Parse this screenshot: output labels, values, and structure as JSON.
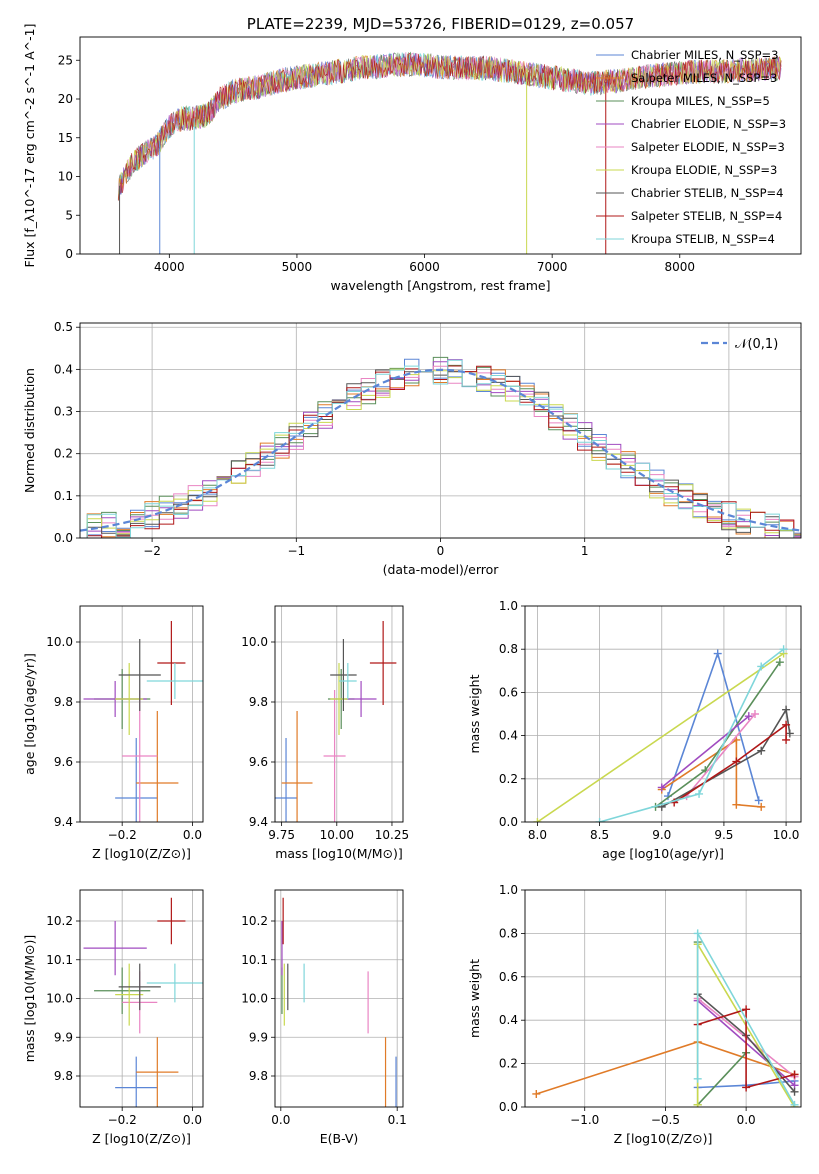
{
  "labels": [
    "Chabrier MILES",
    "Salpeter MILES",
    "Kroupa MILES",
    "Chabrier ELODIE",
    "Salpeter ELODIE",
    "Kroupa ELODIE",
    "Chabrier STELIB",
    "Salpeter STELIB",
    "Kroupa STELIB"
  ],
  "nssp": [
    "N_SSP=3",
    "N_SSP=3",
    "N_SSP=5",
    "N_SSP=3",
    "N_SSP=3",
    "N_SSP=3",
    "N_SSP=4",
    "N_SSP=4",
    "N_SSP=4"
  ],
  "colors": [
    "#5b86d6",
    "#e07b28",
    "#5a8f5a",
    "#a04bc0",
    "#e985c3",
    "#c9d84f",
    "#555555",
    "#b01818",
    "#7fd6da"
  ],
  "chart_data": [
    {
      "id": "spectrum",
      "type": "line",
      "title": "PLATE=2239, MJD=53726, FIBERID=0129, z=0.057",
      "xlabel": "wavelength [Angstrom, rest frame]",
      "ylabel": "Flux [f_λ10^-17 erg cm^-2 s^-1 A^-1]",
      "xlim": [
        3300,
        8950
      ],
      "ylim": [
        0,
        28
      ],
      "xticks": [
        "4000",
        "5000",
        "6000",
        "7000",
        "8000"
      ],
      "yticks": [
        "0",
        "5",
        "10",
        "15",
        "20",
        "25"
      ],
      "x": [
        3600,
        3700,
        3800,
        3900,
        4000,
        4100,
        4200,
        4300,
        4400,
        4500,
        4700,
        4900,
        5100,
        5300,
        5500,
        5700,
        5900,
        6100,
        6300,
        6500,
        6700,
        6900,
        7100,
        7300,
        7500,
        7700,
        7900,
        8100,
        8300,
        8500,
        8800
      ],
      "y": [
        8.5,
        11.5,
        13,
        14,
        16.5,
        17.5,
        17.5,
        18,
        20,
        21,
        21.5,
        22.5,
        23,
        23.5,
        24,
        24.3,
        24.5,
        24.2,
        24,
        24,
        23.5,
        23,
        22.5,
        22,
        22.3,
        22.8,
        23.2,
        23.5,
        23.5,
        23.8,
        24
      ],
      "grid": false,
      "legend": "top-right"
    },
    {
      "id": "residuals",
      "type": "bar",
      "xlabel": "(data-model)/error",
      "ylabel": "Normed distribution",
      "xlim": [
        -2.5,
        2.5
      ],
      "ylim": [
        0,
        0.51
      ],
      "xticks": [
        "−2",
        "−1",
        "0",
        "1",
        "2"
      ],
      "yticks": [
        "0.0",
        "0.1",
        "0.2",
        "0.3",
        "0.4",
        "0.5"
      ],
      "legend_label": "𝒩(0,1)",
      "legend": "top-right",
      "grid": true,
      "bin_width": 0.1
    },
    {
      "id": "age-vs-z",
      "type": "scatter",
      "xlabel": "Z [log10(Z/Z⊙)]",
      "ylabel": "age  [log10(age/yr)]",
      "xlim": [
        -0.32,
        0.03
      ],
      "ylim": [
        9.4,
        10.12
      ],
      "xticks": [
        "−0.2",
        "0.0"
      ],
      "yticks": [
        "9.4",
        "9.6",
        "9.8",
        "10.0"
      ],
      "grid": true,
      "points": [
        {
          "x": -0.16,
          "y": 9.48,
          "xerr": 0.06,
          "yerr": 0.2
        },
        {
          "x": -0.1,
          "y": 9.53,
          "xerr": 0.06,
          "yerr": 0.24
        },
        {
          "x": -0.2,
          "y": 9.81,
          "xerr": 0.08,
          "yerr": 0.1
        },
        {
          "x": -0.22,
          "y": 9.81,
          "xerr": 0.09,
          "yerr": 0.06
        },
        {
          "x": -0.15,
          "y": 9.62,
          "xerr": 0.05,
          "yerr": 0.22
        },
        {
          "x": -0.18,
          "y": 9.81,
          "xerr": 0.04,
          "yerr": 0.12
        },
        {
          "x": -0.15,
          "y": 9.89,
          "xerr": 0.06,
          "yerr": 0.12
        },
        {
          "x": -0.06,
          "y": 9.93,
          "xerr": 0.04,
          "yerr": 0.14
        },
        {
          "x": -0.05,
          "y": 9.87,
          "xerr": 0.08,
          "yerr": 0.06
        }
      ]
    },
    {
      "id": "age-vs-mass",
      "type": "scatter",
      "xlabel": "mass [log10(M/M⊙)]",
      "ylabel": "",
      "xlim": [
        9.72,
        10.3
      ],
      "ylim": [
        9.4,
        10.12
      ],
      "xticks": [
        "9.75",
        "10.00",
        "10.25"
      ],
      "yticks": [
        "9.4",
        "9.6",
        "9.8",
        "10.0"
      ],
      "grid": true,
      "points": [
        {
          "x": 9.77,
          "y": 9.48,
          "xerr": 0.05,
          "yerr": 0.2
        },
        {
          "x": 9.82,
          "y": 9.53,
          "xerr": 0.07,
          "yerr": 0.24
        },
        {
          "x": 10.02,
          "y": 9.81,
          "xerr": 0.06,
          "yerr": 0.1
        },
        {
          "x": 10.11,
          "y": 9.81,
          "xerr": 0.07,
          "yerr": 0.06
        },
        {
          "x": 9.99,
          "y": 9.62,
          "xerr": 0.05,
          "yerr": 0.22
        },
        {
          "x": 10.01,
          "y": 9.81,
          "xerr": 0.04,
          "yerr": 0.12
        },
        {
          "x": 10.03,
          "y": 9.89,
          "xerr": 0.06,
          "yerr": 0.12
        },
        {
          "x": 10.21,
          "y": 9.93,
          "xerr": 0.06,
          "yerr": 0.14
        },
        {
          "x": 10.05,
          "y": 9.87,
          "xerr": 0.04,
          "yerr": 0.06
        }
      ]
    },
    {
      "id": "mass-weight-vs-age",
      "type": "line",
      "xlabel": "age  [log10(age/yr)]",
      "ylabel": "mass weight",
      "xlim": [
        7.9,
        10.12
      ],
      "ylim": [
        0,
        1
      ],
      "xticks": [
        "8.0",
        "8.5",
        "9.0",
        "9.5",
        "10.0"
      ],
      "yticks": [
        "0.0",
        "0.2",
        "0.4",
        "0.6",
        "0.8",
        "1.0"
      ],
      "grid": true,
      "series": [
        {
          "x": [
            9.05,
            9.45,
            9.78
          ],
          "y": [
            0.12,
            0.78,
            0.1
          ]
        },
        {
          "x": [
            9.0,
            9.6,
            9.6,
            9.8
          ],
          "y": [
            0.15,
            0.38,
            0.08,
            0.07
          ]
        },
        {
          "x": [
            8.95,
            9.35,
            9.95
          ],
          "y": [
            0.07,
            0.24,
            0.74
          ]
        },
        {
          "x": [
            9.0,
            9.7
          ],
          "y": [
            0.16,
            0.49
          ]
        },
        {
          "x": [
            9.2,
            9.75
          ],
          "y": [
            0.12,
            0.5
          ]
        },
        {
          "x": [
            8.0,
            9.98
          ],
          "y": [
            0.0,
            0.78
          ]
        },
        {
          "x": [
            9.0,
            9.8,
            10.0,
            10.03
          ],
          "y": [
            0.07,
            0.33,
            0.52,
            0.41
          ]
        },
        {
          "x": [
            9.1,
            9.6,
            10.0,
            10.0
          ],
          "y": [
            0.09,
            0.28,
            0.45,
            0.38
          ]
        },
        {
          "x": [
            8.5,
            9.3,
            9.8,
            9.98
          ],
          "y": [
            0.0,
            0.13,
            0.72,
            0.8
          ]
        }
      ]
    },
    {
      "id": "mass-vs-z",
      "type": "scatter",
      "xlabel": "Z [log10(Z/Z⊙)]",
      "ylabel": "mass [log10(M/M⊙)]",
      "xlim": [
        -0.32,
        0.03
      ],
      "ylim": [
        9.72,
        10.28
      ],
      "xticks": [
        "−0.2",
        "0.0"
      ],
      "yticks": [
        "9.8",
        "9.9",
        "10.0",
        "10.1",
        "10.2"
      ],
      "grid": true,
      "points": [
        {
          "x": -0.16,
          "y": 9.77,
          "xerr": 0.06,
          "yerr": 0.08
        },
        {
          "x": -0.1,
          "y": 9.81,
          "xerr": 0.06,
          "yerr": 0.09
        },
        {
          "x": -0.2,
          "y": 10.02,
          "xerr": 0.08,
          "yerr": 0.06
        },
        {
          "x": -0.22,
          "y": 10.13,
          "xerr": 0.09,
          "yerr": 0.07
        },
        {
          "x": -0.15,
          "y": 9.99,
          "xerr": 0.05,
          "yerr": 0.08
        },
        {
          "x": -0.18,
          "y": 10.01,
          "xerr": 0.04,
          "yerr": 0.08
        },
        {
          "x": -0.15,
          "y": 10.03,
          "xerr": 0.06,
          "yerr": 0.06
        },
        {
          "x": -0.06,
          "y": 10.2,
          "xerr": 0.04,
          "yerr": 0.06
        },
        {
          "x": -0.05,
          "y": 10.04,
          "xerr": 0.08,
          "yerr": 0.05
        }
      ]
    },
    {
      "id": "mass-vs-ebv",
      "type": "scatter",
      "xlabel": "E(B-V)",
      "ylabel": "",
      "xlim": [
        -0.005,
        0.105
      ],
      "ylim": [
        9.72,
        10.28
      ],
      "xticks": [
        "0.0",
        "0.1"
      ],
      "yticks": [
        "9.8",
        "9.9",
        "10.0",
        "10.1",
        "10.2"
      ],
      "grid": true,
      "points": [
        {
          "x": 0.099,
          "y": 9.77,
          "xerr": 0.0,
          "yerr": 0.08
        },
        {
          "x": 0.09,
          "y": 9.81,
          "xerr": 0.0,
          "yerr": 0.09
        },
        {
          "x": 0.001,
          "y": 10.02,
          "xerr": 0.0,
          "yerr": 0.06
        },
        {
          "x": 0.001,
          "y": 10.13,
          "xerr": 0.0,
          "yerr": 0.07
        },
        {
          "x": 0.075,
          "y": 9.99,
          "xerr": 0.0,
          "yerr": 0.08
        },
        {
          "x": 0.003,
          "y": 10.01,
          "xerr": 0.0,
          "yerr": 0.08
        },
        {
          "x": 0.006,
          "y": 10.03,
          "xerr": 0.0,
          "yerr": 0.06
        },
        {
          "x": 0.002,
          "y": 10.2,
          "xerr": 0.0,
          "yerr": 0.06
        },
        {
          "x": 0.02,
          "y": 10.04,
          "xerr": 0.0,
          "yerr": 0.05
        }
      ]
    },
    {
      "id": "mass-weight-vs-z",
      "type": "line",
      "xlabel": "Z [log10(Z/Z⊙)]",
      "ylabel": "mass weight",
      "xlim": [
        -1.37,
        0.34
      ],
      "ylim": [
        0,
        1
      ],
      "xticks": [
        "−1.0",
        "−0.5",
        "0.0"
      ],
      "yticks": [
        "0.0",
        "0.2",
        "0.4",
        "0.6",
        "0.8",
        "1.0"
      ],
      "grid": true,
      "series": [
        {
          "x": [
            -0.3,
            0.0,
            0.3
          ],
          "y": [
            0.09,
            0.1,
            0.12
          ]
        },
        {
          "x": [
            -1.3,
            -0.3,
            0.3
          ],
          "y": [
            0.06,
            0.3,
            0.15
          ]
        },
        {
          "x": [
            -0.3,
            -0.3,
            0.0
          ],
          "y": [
            0.76,
            0.01,
            0.25
          ]
        },
        {
          "x": [
            -0.3,
            0.3
          ],
          "y": [
            0.49,
            0.1
          ]
        },
        {
          "x": [
            -0.3,
            0.3
          ],
          "y": [
            0.5,
            0.14
          ]
        },
        {
          "x": [
            -0.3,
            -0.3,
            0.3
          ],
          "y": [
            0.01,
            0.75,
            0.0
          ]
        },
        {
          "x": [
            -0.3,
            0.0,
            0.3
          ],
          "y": [
            0.52,
            0.33,
            0.07
          ]
        },
        {
          "x": [
            -0.3,
            0.0,
            0.0,
            0.3
          ],
          "y": [
            0.38,
            0.45,
            0.09,
            0.15
          ]
        },
        {
          "x": [
            -0.3,
            -0.3,
            0.3
          ],
          "y": [
            0.13,
            0.8,
            0.01
          ]
        }
      ]
    }
  ]
}
